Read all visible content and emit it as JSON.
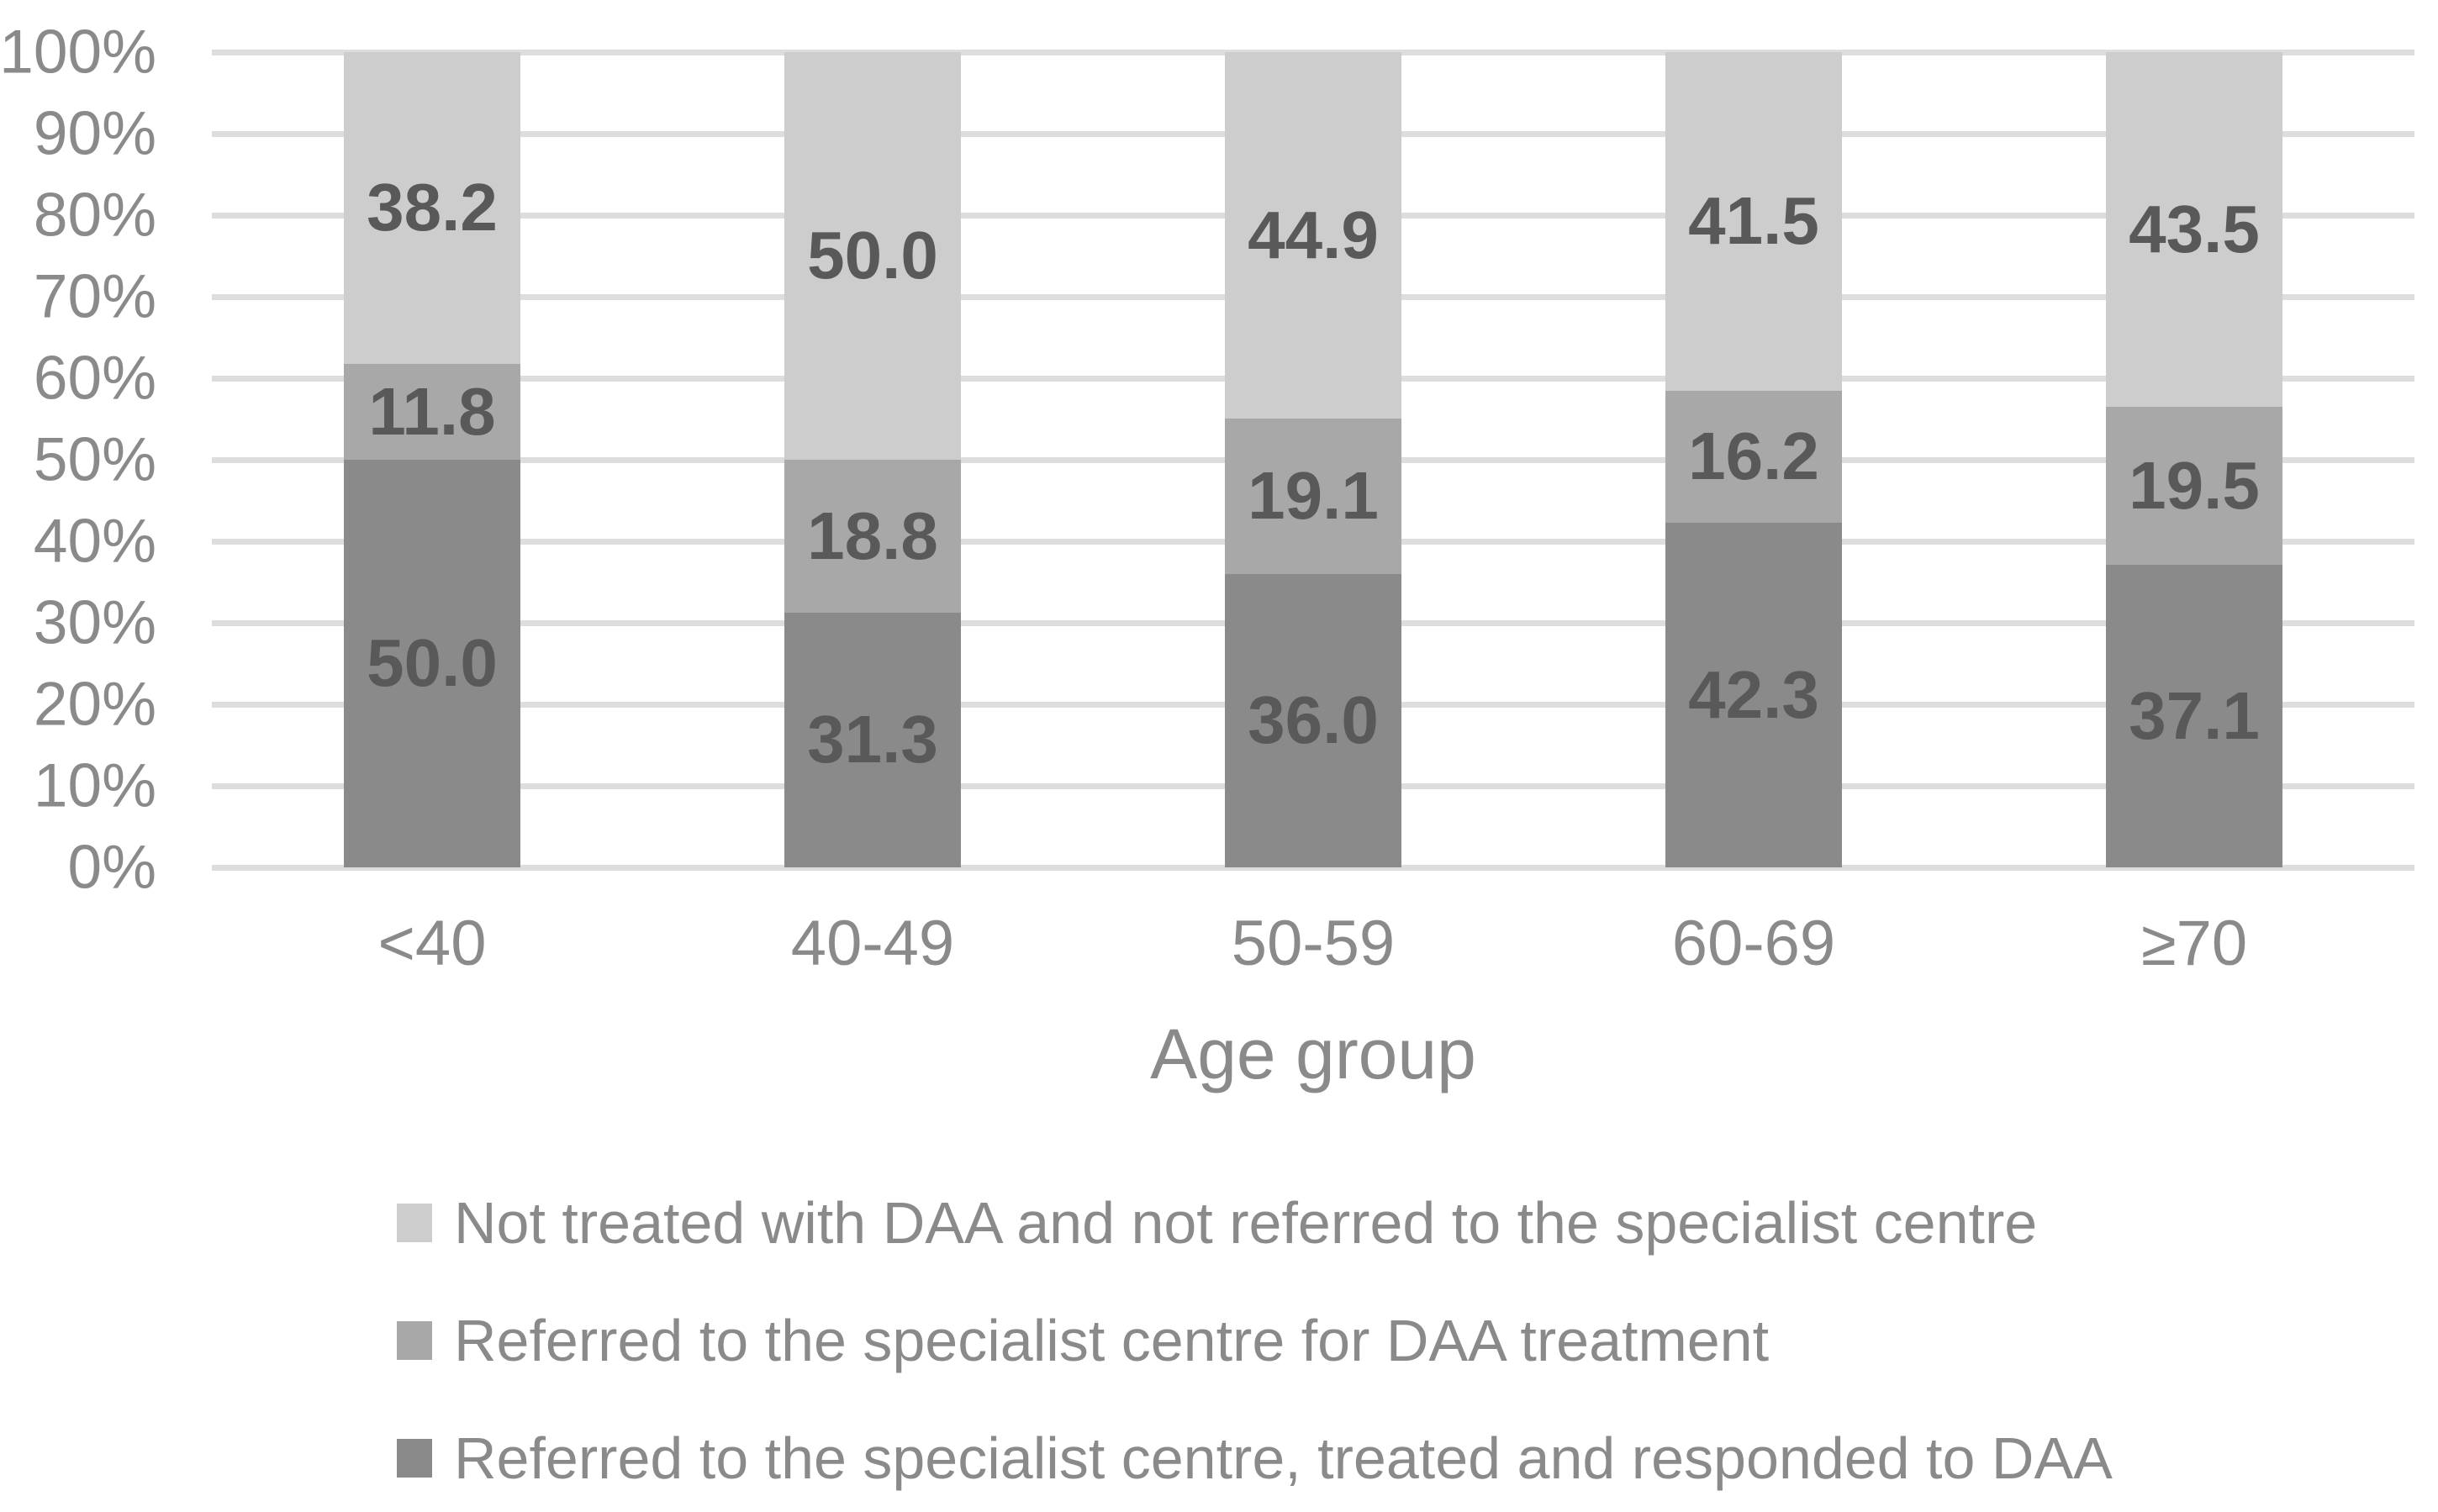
{
  "chart_data": {
    "type": "bar",
    "stacked": true,
    "percent_stacked": true,
    "title": "",
    "xlabel": "Age group",
    "ylabel": "",
    "ylim": [
      0,
      100
    ],
    "grid": true,
    "legend_position": "bottom",
    "categories": [
      "<40",
      "40-49",
      "50-59",
      "60-69",
      "≥70"
    ],
    "y_ticks": [
      "100%",
      "90%",
      "80%",
      "70%",
      "60%",
      "50%",
      "40%",
      "30%",
      "20%",
      "10%",
      "0%"
    ],
    "series": [
      {
        "name": "Referred to the specialist centre, treated and responded to DAA",
        "color": "#8a8a8a",
        "values": [
          50.0,
          31.3,
          36.0,
          42.3,
          37.1
        ]
      },
      {
        "name": "Referred to the specialist centre for DAA treatment",
        "color": "#a8a8a8",
        "values": [
          11.8,
          18.8,
          19.1,
          16.2,
          19.5
        ]
      },
      {
        "name": "Not treated with DAA and not referred to the specialist centre",
        "color": "#cdcdcd",
        "values": [
          38.2,
          50.0,
          44.9,
          41.5,
          43.5
        ]
      }
    ]
  },
  "colors": {
    "background": "#ffffff",
    "gridline": "#dddddd",
    "axis_text": "#8a8a8a",
    "data_label": "#595959"
  }
}
